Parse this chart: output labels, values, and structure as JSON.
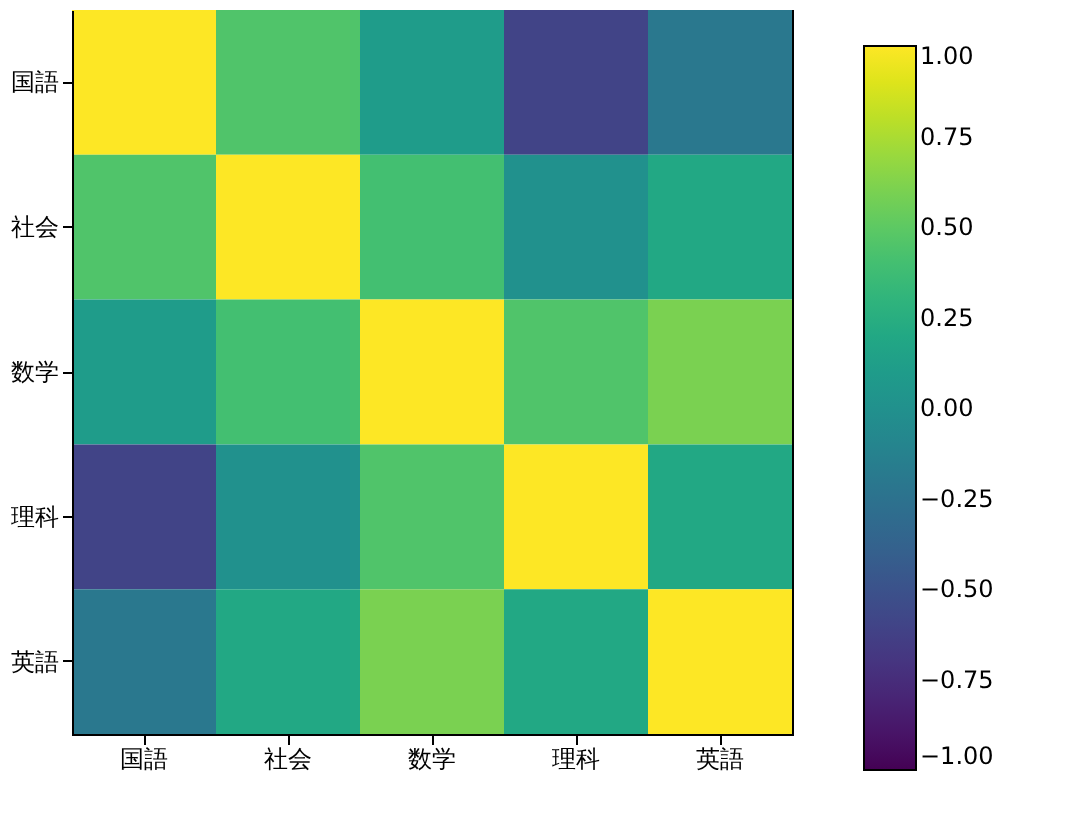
{
  "chart_data": {
    "type": "heatmap",
    "categories": [
      "国語",
      "社会",
      "数学",
      "理科",
      "英語"
    ],
    "y_categories": [
      "国語",
      "社会",
      "数学",
      "理科",
      "英語"
    ],
    "cells": [
      [
        1,
        0.45,
        0.1,
        -0.6,
        -0.2
      ],
      [
        0.45,
        1,
        0.4,
        0.0,
        0.2
      ],
      [
        0.1,
        0.4,
        1,
        0.45,
        0.6
      ],
      [
        -0.6,
        0.0,
        0.45,
        1,
        0.2
      ],
      [
        -0.2,
        0.2,
        0.6,
        0.2,
        1
      ]
    ],
    "clim": [
      -1,
      1
    ],
    "cticks": [
      {
        "value": -1,
        "label": "−1.00"
      },
      {
        "value": -0.75,
        "label": "−0.75"
      },
      {
        "value": -0.5,
        "label": "−0.50"
      },
      {
        "value": -0.25,
        "label": "−0.25"
      },
      {
        "value": 0,
        "label": "0.00"
      },
      {
        "value": 0.25,
        "label": "0.25"
      },
      {
        "value": 0.5,
        "label": "0.50"
      },
      {
        "value": 0.75,
        "label": "0.75"
      },
      {
        "value": 1,
        "label": "1.00"
      }
    ],
    "grid": false
  }
}
